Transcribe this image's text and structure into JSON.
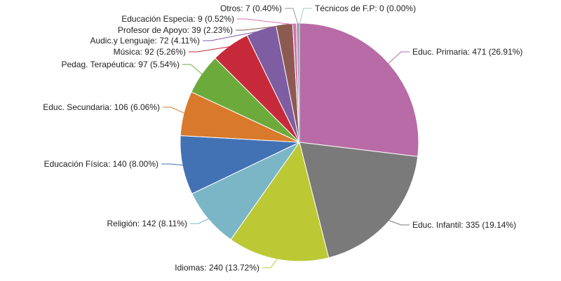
{
  "chart_data": {
    "type": "pie",
    "title": "",
    "slices": [
      {
        "label": "Educ. Primaria: 471 (26.91%)",
        "name": "Educ. Primaria",
        "value": 471,
        "percent": 26.91,
        "color": "#B86BA6"
      },
      {
        "label": "Educ. Infantil: 335 (19.14%)",
        "name": "Educ. Infantil",
        "value": 335,
        "percent": 19.14,
        "color": "#7A7A7A"
      },
      {
        "label": "Idiomas: 240 (13.72%)",
        "name": "Idiomas",
        "value": 240,
        "percent": 13.72,
        "color": "#BCC834"
      },
      {
        "label": "Religión: 142 (8.11%)",
        "name": "Religión",
        "value": 142,
        "percent": 8.11,
        "color": "#7BB6C7"
      },
      {
        "label": "Educación Física: 140 (8.00%)",
        "name": "Educación Física",
        "value": 140,
        "percent": 8.0,
        "color": "#4272B4"
      },
      {
        "label": "Educ. Secundaria: 106 (6.06%)",
        "name": "Educ. Secundaria",
        "value": 106,
        "percent": 6.06,
        "color": "#D8792B"
      },
      {
        "label": "Pedag. Terapéutica: 97 (5.54%)",
        "name": "Pedag. Terapéutica",
        "value": 97,
        "percent": 5.54,
        "color": "#6DAA3C"
      },
      {
        "label": "Música: 92 (5.26%)",
        "name": "Música",
        "value": 92,
        "percent": 5.26,
        "color": "#C62A3A"
      },
      {
        "label": "Audic.y Lenguaje: 72 (4.11%)",
        "name": "Audic.y Lenguaje",
        "value": 72,
        "percent": 4.11,
        "color": "#7E5DA3"
      },
      {
        "label": "Profesor de Apoyo: 39 (2.23%)",
        "name": "Profesor de Apoyo",
        "value": 39,
        "percent": 2.23,
        "color": "#8D5A52"
      },
      {
        "label": "Educación Especia: 9 (0.52%)",
        "name": "Educación Especia",
        "value": 9,
        "percent": 0.52,
        "color": "#D86FB6"
      },
      {
        "label": "Otros: 7 (0.40%)",
        "name": "Otros",
        "value": 7,
        "percent": 0.4,
        "color": "#9A9A9A"
      },
      {
        "label": "Técnicos de F.P: 0 (0.00%)",
        "name": "Técnicos de F.P",
        "value": 0,
        "percent": 0.0,
        "color": "#A6C9D3"
      }
    ]
  }
}
